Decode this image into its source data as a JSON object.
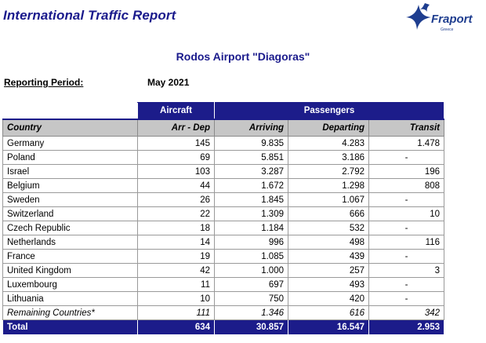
{
  "header": {
    "report_title": "International Traffic Report",
    "logo_text": "Fraport",
    "logo_subtext": "Greece",
    "airport_title": "Rodos Airport \"Diagoras\""
  },
  "period": {
    "label": "Reporting Period:",
    "value": "May 2021"
  },
  "table": {
    "group_headers": {
      "aircraft": "Aircraft",
      "passengers": "Passengers"
    },
    "columns": [
      "Country",
      "Arr - Dep",
      "Arriving",
      "Departing",
      "Transit"
    ],
    "rows": [
      [
        "Germany",
        "145",
        "9.835",
        "4.283",
        "1.478"
      ],
      [
        "Poland",
        "69",
        "5.851",
        "3.186",
        "-"
      ],
      [
        "Israel",
        "103",
        "3.287",
        "2.792",
        "196"
      ],
      [
        "Belgium",
        "44",
        "1.672",
        "1.298",
        "808"
      ],
      [
        "Sweden",
        "26",
        "1.845",
        "1.067",
        "-"
      ],
      [
        "Switzerland",
        "22",
        "1.309",
        "666",
        "10"
      ],
      [
        "Czech Republic",
        "18",
        "1.184",
        "532",
        "-"
      ],
      [
        "Netherlands",
        "14",
        "996",
        "498",
        "116"
      ],
      [
        "France",
        "19",
        "1.085",
        "439",
        "-"
      ],
      [
        "United Kingdom",
        "42",
        "1.000",
        "257",
        "3"
      ],
      [
        "Luxembourg",
        "11",
        "697",
        "493",
        "-"
      ],
      [
        "Lithuania",
        "10",
        "750",
        "420",
        "-"
      ]
    ],
    "remaining": [
      "Remaining Countries*",
      "111",
      "1.346",
      "616",
      "342"
    ],
    "total": [
      "Total",
      "634",
      "30.857",
      "16.547",
      "2.953"
    ]
  },
  "colors": {
    "brand_navy": "#1c1c8a",
    "header_gray": "#c6c6c6",
    "title_blue": "#1a1a8c"
  }
}
